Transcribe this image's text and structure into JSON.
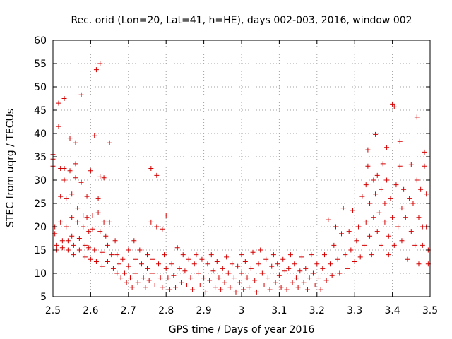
{
  "chart_data": {
    "type": "scatter",
    "title": "Rec. orid (Lon=20, Lat=41, h=HE), days 002-003, 2016, window 002",
    "xlabel": "GPS time / Days of year 2016",
    "ylabel": "STEC from uqrg / TECUs",
    "xlim": [
      2.5,
      3.5
    ],
    "ylim": [
      5,
      60
    ],
    "xticks": [
      2.5,
      2.6,
      2.7,
      2.8,
      2.9,
      3.0,
      3.1,
      3.2,
      3.3,
      3.4,
      3.5
    ],
    "xtick_labels": [
      "2.5",
      "2.6",
      "2.7",
      "2.8",
      "2.9",
      "3",
      "3.1",
      "3.2",
      "3.3",
      "3.4",
      "3.5"
    ],
    "yticks": [
      5,
      10,
      15,
      20,
      25,
      30,
      35,
      40,
      45,
      50,
      55,
      60
    ],
    "ytick_labels": [
      "5",
      "10",
      "15",
      "20",
      "25",
      "30",
      "35",
      "40",
      "45",
      "50",
      "55",
      "60"
    ],
    "grid": true,
    "marker": "+",
    "color": "#d40000",
    "series": [
      {
        "name": "STEC",
        "points": [
          [
            2.5,
            35.5
          ],
          [
            2.5,
            34.5
          ],
          [
            2.5,
            33
          ],
          [
            2.505,
            20
          ],
          [
            2.505,
            18.5
          ],
          [
            2.51,
            16
          ],
          [
            2.51,
            15
          ],
          [
            2.515,
            46.5
          ],
          [
            2.515,
            41.5
          ],
          [
            2.52,
            32.5
          ],
          [
            2.52,
            26.5
          ],
          [
            2.52,
            21
          ],
          [
            2.525,
            17
          ],
          [
            2.525,
            15.5
          ],
          [
            2.53,
            47.5
          ],
          [
            2.53,
            32.5
          ],
          [
            2.53,
            30
          ],
          [
            2.535,
            26
          ],
          [
            2.535,
            20
          ],
          [
            2.54,
            17
          ],
          [
            2.54,
            15
          ],
          [
            2.545,
            39
          ],
          [
            2.545,
            32
          ],
          [
            2.55,
            27
          ],
          [
            2.55,
            22
          ],
          [
            2.55,
            18
          ],
          [
            2.555,
            16
          ],
          [
            2.555,
            14
          ],
          [
            2.56,
            38
          ],
          [
            2.56,
            33.5
          ],
          [
            2.56,
            30.5
          ],
          [
            2.565,
            24
          ],
          [
            2.565,
            21
          ],
          [
            2.57,
            17.5
          ],
          [
            2.57,
            15
          ],
          [
            2.575,
            48.3
          ],
          [
            2.575,
            29.5
          ],
          [
            2.58,
            22.5
          ],
          [
            2.58,
            20
          ],
          [
            2.585,
            16
          ],
          [
            2.585,
            13.5
          ],
          [
            2.59,
            26.5
          ],
          [
            2.59,
            22
          ],
          [
            2.595,
            19
          ],
          [
            2.595,
            15.5
          ],
          [
            2.6,
            13
          ],
          [
            2.6,
            32
          ],
          [
            2.605,
            22.5
          ],
          [
            2.605,
            19.5
          ],
          [
            2.61,
            39.5
          ],
          [
            2.61,
            15
          ],
          [
            2.615,
            53.7
          ],
          [
            2.615,
            12.5
          ],
          [
            2.62,
            26
          ],
          [
            2.62,
            23
          ],
          [
            2.625,
            55
          ],
          [
            2.625,
            30.7
          ],
          [
            2.625,
            19
          ],
          [
            2.63,
            14.5
          ],
          [
            2.63,
            11.5
          ],
          [
            2.635,
            30.5
          ],
          [
            2.635,
            21
          ],
          [
            2.64,
            18
          ],
          [
            2.645,
            16
          ],
          [
            2.645,
            12.5
          ],
          [
            2.65,
            38
          ],
          [
            2.65,
            21
          ],
          [
            2.655,
            14
          ],
          [
            2.66,
            11
          ],
          [
            2.665,
            17
          ],
          [
            2.67,
            14
          ],
          [
            2.67,
            10
          ],
          [
            2.675,
            12
          ],
          [
            2.68,
            9
          ],
          [
            2.685,
            13
          ],
          [
            2.69,
            10
          ],
          [
            2.695,
            8
          ],
          [
            2.7,
            15
          ],
          [
            2.7,
            11.5
          ],
          [
            2.705,
            9
          ],
          [
            2.71,
            7
          ],
          [
            2.715,
            17
          ],
          [
            2.72,
            13
          ],
          [
            2.72,
            10
          ],
          [
            2.725,
            8
          ],
          [
            2.73,
            15
          ],
          [
            2.735,
            12
          ],
          [
            2.74,
            9
          ],
          [
            2.745,
            7
          ],
          [
            2.75,
            14
          ],
          [
            2.75,
            11
          ],
          [
            2.755,
            8.5
          ],
          [
            2.76,
            32.5
          ],
          [
            2.76,
            21
          ],
          [
            2.765,
            13
          ],
          [
            2.765,
            10
          ],
          [
            2.77,
            7.5
          ],
          [
            2.775,
            31
          ],
          [
            2.775,
            20
          ],
          [
            2.78,
            12
          ],
          [
            2.785,
            9
          ],
          [
            2.79,
            19.5
          ],
          [
            2.79,
            7
          ],
          [
            2.795,
            14
          ],
          [
            2.8,
            22.5
          ],
          [
            2.8,
            11
          ],
          [
            2.805,
            9
          ],
          [
            2.81,
            6.5
          ],
          [
            2.815,
            12
          ],
          [
            2.82,
            9.5
          ],
          [
            2.825,
            7
          ],
          [
            2.83,
            15.5
          ],
          [
            2.835,
            11
          ],
          [
            2.84,
            8
          ],
          [
            2.845,
            14
          ],
          [
            2.85,
            10.5
          ],
          [
            2.855,
            7.5
          ],
          [
            2.86,
            13
          ],
          [
            2.865,
            9
          ],
          [
            2.87,
            6.5
          ],
          [
            2.875,
            12
          ],
          [
            2.88,
            14
          ],
          [
            2.885,
            10
          ],
          [
            2.89,
            7.5
          ],
          [
            2.895,
            13
          ],
          [
            2.9,
            9
          ],
          [
            2.905,
            6
          ],
          [
            2.91,
            12
          ],
          [
            2.915,
            8.5
          ],
          [
            2.92,
            14
          ],
          [
            2.925,
            10.5
          ],
          [
            2.93,
            7
          ],
          [
            2.935,
            12.5
          ],
          [
            2.94,
            9
          ],
          [
            2.945,
            6.5
          ],
          [
            2.95,
            11
          ],
          [
            2.955,
            8
          ],
          [
            2.96,
            13.5
          ],
          [
            2.965,
            10
          ],
          [
            2.97,
            7
          ],
          [
            2.975,
            12
          ],
          [
            2.98,
            9
          ],
          [
            2.985,
            6
          ],
          [
            2.99,
            11.5
          ],
          [
            2.995,
            8
          ],
          [
            3.0,
            14
          ],
          [
            3.0,
            10
          ],
          [
            3.005,
            6.5
          ],
          [
            3.01,
            12.5
          ],
          [
            3.015,
            9
          ],
          [
            3.02,
            7
          ],
          [
            3.025,
            11
          ],
          [
            3.03,
            14.5
          ],
          [
            3.035,
            8.5
          ],
          [
            3.04,
            6
          ],
          [
            3.045,
            12
          ],
          [
            3.05,
            15
          ],
          [
            3.055,
            10
          ],
          [
            3.06,
            7.5
          ],
          [
            3.065,
            13
          ],
          [
            3.07,
            9
          ],
          [
            3.075,
            6.5
          ],
          [
            3.08,
            11.5
          ],
          [
            3.085,
            14
          ],
          [
            3.09,
            8
          ],
          [
            3.095,
            12
          ],
          [
            3.1,
            9.5
          ],
          [
            3.105,
            7
          ],
          [
            3.11,
            13
          ],
          [
            3.115,
            10.5
          ],
          [
            3.12,
            6.5
          ],
          [
            3.125,
            11
          ],
          [
            3.13,
            14
          ],
          [
            3.135,
            8
          ],
          [
            3.14,
            12
          ],
          [
            3.145,
            9
          ],
          [
            3.15,
            7
          ],
          [
            3.155,
            10.5
          ],
          [
            3.16,
            13.5
          ],
          [
            3.165,
            8
          ],
          [
            3.17,
            11
          ],
          [
            3.175,
            6.5
          ],
          [
            3.18,
            9
          ],
          [
            3.185,
            14
          ],
          [
            3.19,
            10
          ],
          [
            3.195,
            7.5
          ],
          [
            3.2,
            12
          ],
          [
            3.205,
            9
          ],
          [
            3.21,
            6.5
          ],
          [
            3.215,
            11
          ],
          [
            3.22,
            14
          ],
          [
            3.225,
            8.5
          ],
          [
            3.23,
            21.5
          ],
          [
            3.235,
            12
          ],
          [
            3.24,
            9.5
          ],
          [
            3.245,
            16
          ],
          [
            3.25,
            20
          ],
          [
            3.255,
            13
          ],
          [
            3.26,
            10
          ],
          [
            3.265,
            18.5
          ],
          [
            3.27,
            24
          ],
          [
            3.275,
            14
          ],
          [
            3.28,
            11
          ],
          [
            3.285,
            19
          ],
          [
            3.29,
            15
          ],
          [
            3.295,
            23.5
          ],
          [
            3.3,
            12.5
          ],
          [
            3.305,
            17
          ],
          [
            3.31,
            20
          ],
          [
            3.315,
            13.5
          ],
          [
            3.32,
            26.5
          ],
          [
            3.325,
            16
          ],
          [
            3.33,
            29
          ],
          [
            3.33,
            21
          ],
          [
            3.335,
            36.5
          ],
          [
            3.335,
            33
          ],
          [
            3.34,
            18
          ],
          [
            3.34,
            25
          ],
          [
            3.345,
            14
          ],
          [
            3.35,
            30
          ],
          [
            3.35,
            22
          ],
          [
            3.355,
            39.8
          ],
          [
            3.355,
            27
          ],
          [
            3.36,
            31
          ],
          [
            3.36,
            19
          ],
          [
            3.365,
            23
          ],
          [
            3.37,
            16
          ],
          [
            3.37,
            28
          ],
          [
            3.375,
            33.5
          ],
          [
            3.38,
            25
          ],
          [
            3.38,
            21
          ],
          [
            3.385,
            37
          ],
          [
            3.385,
            30
          ],
          [
            3.39,
            18
          ],
          [
            3.39,
            14
          ],
          [
            3.395,
            26
          ],
          [
            3.4,
            46.3
          ],
          [
            3.4,
            22
          ],
          [
            3.405,
            45.7
          ],
          [
            3.405,
            16
          ],
          [
            3.41,
            29
          ],
          [
            3.415,
            20
          ],
          [
            3.42,
            38.3
          ],
          [
            3.42,
            33
          ],
          [
            3.425,
            24
          ],
          [
            3.425,
            17
          ],
          [
            3.43,
            28
          ],
          [
            3.435,
            22
          ],
          [
            3.44,
            13
          ],
          [
            3.445,
            26
          ],
          [
            3.45,
            33.3
          ],
          [
            3.45,
            19
          ],
          [
            3.455,
            25
          ],
          [
            3.46,
            16
          ],
          [
            3.465,
            43.5
          ],
          [
            3.465,
            30
          ],
          [
            3.47,
            22
          ],
          [
            3.47,
            12
          ],
          [
            3.475,
            28
          ],
          [
            3.48,
            20
          ],
          [
            3.48,
            16
          ],
          [
            3.485,
            36
          ],
          [
            3.485,
            33
          ],
          [
            3.49,
            27
          ],
          [
            3.49,
            20
          ],
          [
            3.495,
            15
          ],
          [
            3.495,
            12
          ]
        ]
      }
    ]
  }
}
